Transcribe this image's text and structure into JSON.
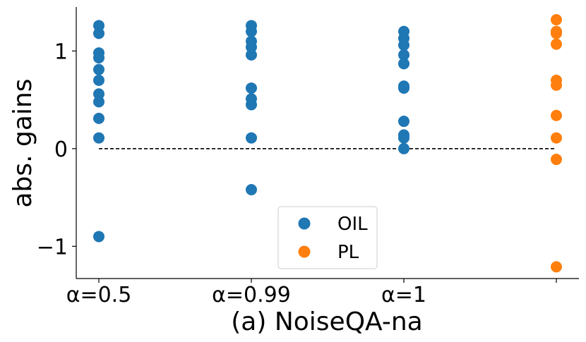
{
  "chart_data": {
    "type": "scatter",
    "title": "(a) NoiseQA-na",
    "xlabel": "(a) NoiseQA-na",
    "ylabel": "abs. gains",
    "categories": [
      "α=0.5",
      "α=0.99",
      "α=1",
      ""
    ],
    "ylim": [
      -1.33,
      1.45
    ],
    "yticks": [
      -1,
      0,
      1
    ],
    "ytick_labels": [
      "−1",
      "0",
      "1"
    ],
    "grid": false,
    "legend_position": "bottom-center",
    "reference_line": {
      "y": 0,
      "style": "dashed",
      "color": "#000000",
      "from_category": 0,
      "to_category": 3
    },
    "series": [
      {
        "name": "OIL",
        "color": "#1f77b4",
        "points": [
          {
            "x": 0,
            "y": 1.26
          },
          {
            "x": 0,
            "y": 1.18
          },
          {
            "x": 0,
            "y": 0.98
          },
          {
            "x": 0,
            "y": 0.93
          },
          {
            "x": 0,
            "y": 0.81
          },
          {
            "x": 0,
            "y": 0.7
          },
          {
            "x": 0,
            "y": 0.56
          },
          {
            "x": 0,
            "y": 0.48
          },
          {
            "x": 0,
            "y": 0.31
          },
          {
            "x": 0,
            "y": 0.11
          },
          {
            "x": 0,
            "y": -0.9
          },
          {
            "x": 1,
            "y": 1.26
          },
          {
            "x": 1,
            "y": 1.2
          },
          {
            "x": 1,
            "y": 1.1
          },
          {
            "x": 1,
            "y": 1.04
          },
          {
            "x": 1,
            "y": 0.96
          },
          {
            "x": 1,
            "y": 0.62
          },
          {
            "x": 1,
            "y": 0.51
          },
          {
            "x": 1,
            "y": 0.45
          },
          {
            "x": 1,
            "y": 0.11
          },
          {
            "x": 1,
            "y": -0.42
          },
          {
            "x": 2,
            "y": 1.2
          },
          {
            "x": 2,
            "y": 1.13
          },
          {
            "x": 2,
            "y": 1.06
          },
          {
            "x": 2,
            "y": 0.96
          },
          {
            "x": 2,
            "y": 0.87
          },
          {
            "x": 2,
            "y": 0.64
          },
          {
            "x": 2,
            "y": 0.62
          },
          {
            "x": 2,
            "y": 0.28
          },
          {
            "x": 2,
            "y": 0.14
          },
          {
            "x": 2,
            "y": 0.11
          },
          {
            "x": 2,
            "y": 0.0
          }
        ]
      },
      {
        "name": "PL",
        "color": "#ff7f0e",
        "points": [
          {
            "x": 3,
            "y": 1.32
          },
          {
            "x": 3,
            "y": 1.2
          },
          {
            "x": 3,
            "y": 1.18
          },
          {
            "x": 3,
            "y": 1.07
          },
          {
            "x": 3,
            "y": 0.7
          },
          {
            "x": 3,
            "y": 0.65
          },
          {
            "x": 3,
            "y": 0.34
          },
          {
            "x": 3,
            "y": 0.11
          },
          {
            "x": 3,
            "y": -0.11
          },
          {
            "x": 3,
            "y": -1.21
          }
        ]
      }
    ]
  }
}
